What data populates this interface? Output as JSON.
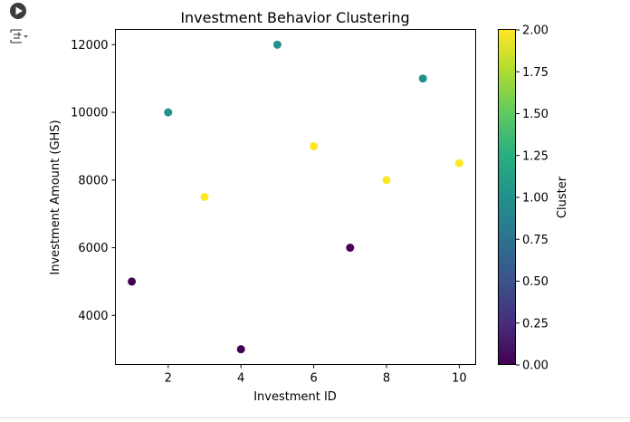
{
  "cell": {
    "run_icon": "play-circle-icon",
    "output_icon": "output-toggle-icon"
  },
  "chart_data": {
    "type": "scatter",
    "title": "Investment Behavior Clustering",
    "xlabel": "Investment ID",
    "ylabel": "Investment Amount (GHS)",
    "xlim": [
      0.55,
      10.45
    ],
    "ylim": [
      2550,
      12450
    ],
    "xticks": [
      2,
      4,
      6,
      8,
      10
    ],
    "yticks": [
      4000,
      6000,
      8000,
      10000,
      12000
    ],
    "grid": false,
    "colormap": "viridis",
    "points": [
      {
        "x": 1,
        "y": 5000,
        "cluster": 0
      },
      {
        "x": 2,
        "y": 10000,
        "cluster": 1
      },
      {
        "x": 3,
        "y": 7500,
        "cluster": 2
      },
      {
        "x": 4,
        "y": 3000,
        "cluster": 0
      },
      {
        "x": 5,
        "y": 12000,
        "cluster": 1
      },
      {
        "x": 6,
        "y": 9000,
        "cluster": 2
      },
      {
        "x": 7,
        "y": 6000,
        "cluster": 0
      },
      {
        "x": 8,
        "y": 8000,
        "cluster": 2
      },
      {
        "x": 9,
        "y": 11000,
        "cluster": 1
      },
      {
        "x": 10,
        "y": 8500,
        "cluster": 2
      }
    ],
    "colorbar": {
      "label": "Cluster",
      "range": [
        0,
        2
      ],
      "ticks": [
        "0.00",
        "0.25",
        "0.50",
        "0.75",
        "1.00",
        "1.25",
        "1.50",
        "1.75",
        "2.00"
      ]
    }
  }
}
